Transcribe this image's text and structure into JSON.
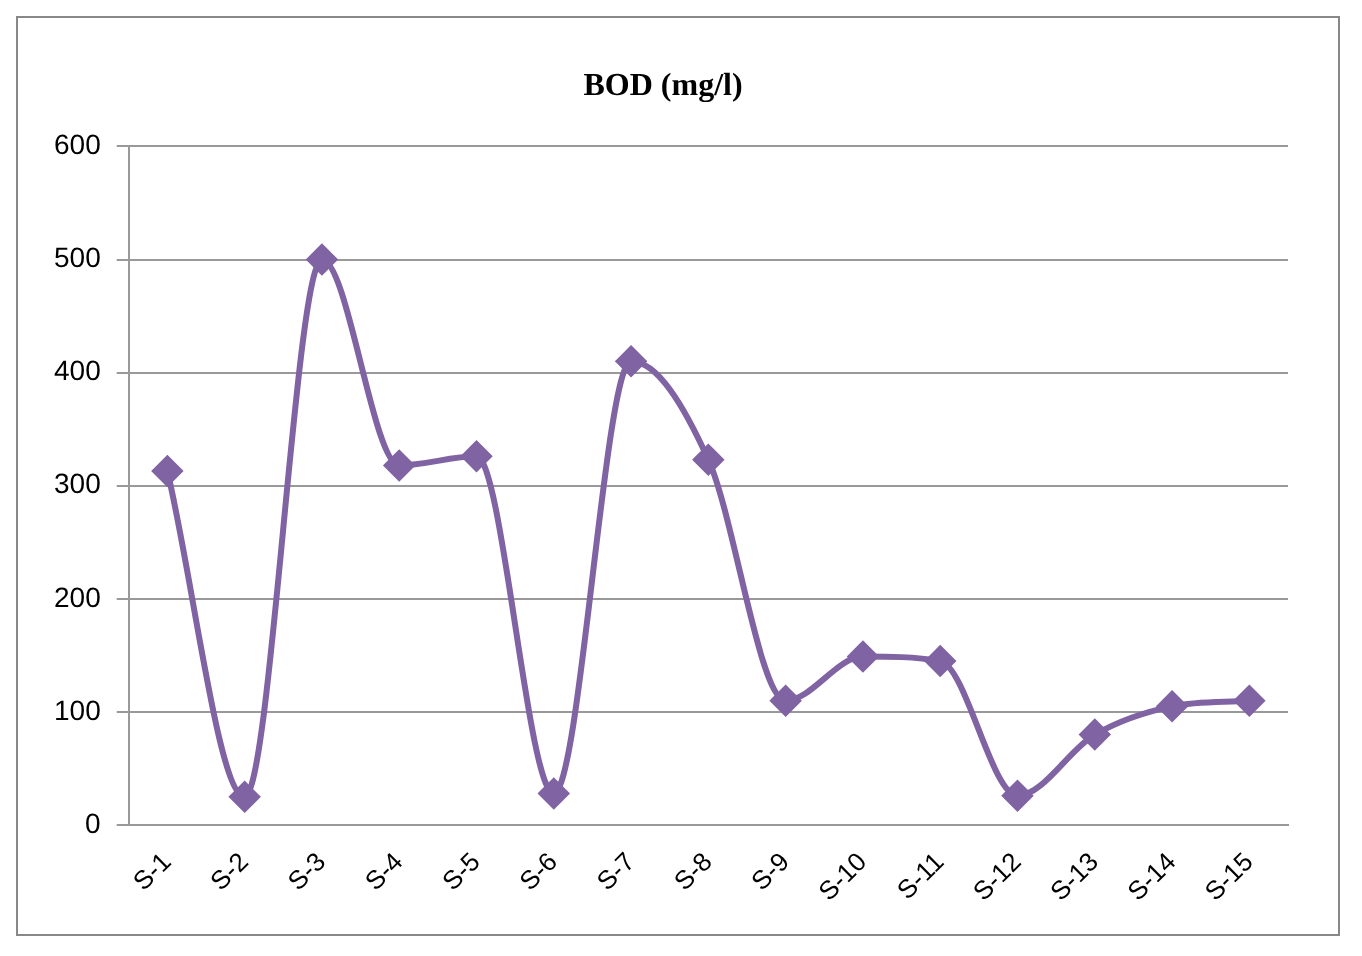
{
  "chart_data": {
    "type": "line",
    "title": "BOD (mg/l)",
    "categories": [
      "S-1",
      "S-2",
      "S-3",
      "S-4",
      "S-5",
      "S-6",
      "S-7",
      "S-8",
      "S-9",
      "S-10",
      "S-11",
      "S-12",
      "S-13",
      "S-14",
      "S-15"
    ],
    "series": [
      {
        "color": "#7f63a3",
        "values": [
          313,
          25,
          500,
          318,
          326,
          28,
          410,
          323,
          110,
          149,
          145,
          26,
          80,
          105,
          110
        ]
      }
    ],
    "ylim": [
      0,
      600
    ],
    "yticks": [
      0,
      100,
      200,
      300,
      400,
      500,
      600
    ],
    "grid": "y",
    "legend": false,
    "marker": "diamond",
    "line_style": "solid"
  }
}
